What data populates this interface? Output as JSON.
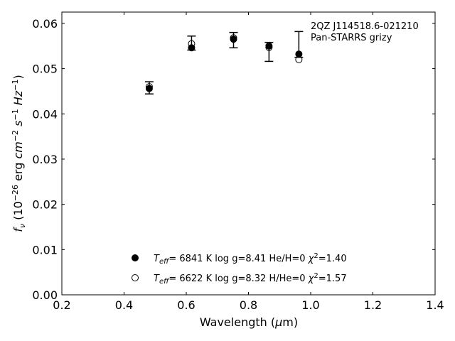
{
  "chart_data": {
    "type": "scatter",
    "title": "",
    "xlabel": "Wavelength (μm)",
    "ylabel": "fν (10⁻²⁶ erg cm⁻² s⁻¹ Hz⁻¹)",
    "xlim": [
      0.2,
      1.4
    ],
    "ylim": [
      0.0,
      0.0625
    ],
    "xticks": [
      "0.2",
      "0.4",
      "0.6",
      "0.8",
      "1.0",
      "1.2",
      "1.4"
    ],
    "yticks": [
      "0.00",
      "0.01",
      "0.02",
      "0.03",
      "0.04",
      "0.05",
      "0.06"
    ],
    "annotation": [
      "2QZ J114518.6-021210",
      "Pan-STARRS grizy"
    ],
    "observed": {
      "x": [
        0.481,
        0.617,
        0.752,
        0.866,
        0.962
      ],
      "y": [
        0.0459,
        0.0556,
        0.0569,
        0.0548,
        0.0539
      ],
      "yerr_low": [
        0.0015,
        0.0015,
        0.0023,
        0.0032,
        0.0014
      ],
      "yerr_high": [
        0.0012,
        0.0016,
        0.0011,
        0.001,
        0.0043
      ]
    },
    "series": [
      {
        "name": "Teff= 6841 K log g=8.41 He/H=0 χ²=1.40",
        "marker": "filled",
        "x": [
          0.481,
          0.617,
          0.752,
          0.866,
          0.962
        ],
        "y": [
          0.0456,
          0.0546,
          0.0565,
          0.055,
          0.0532
        ]
      },
      {
        "name": "Teff= 6622 K log g=8.32 H/He=0 χ²=1.57",
        "marker": "open",
        "x": [
          0.481,
          0.617,
          0.752,
          0.866,
          0.962
        ],
        "y": [
          0.046,
          0.0555,
          0.0568,
          0.0547,
          0.052
        ]
      }
    ],
    "legend": {
      "placement": "bottom-center",
      "entries": [
        {
          "teff_text": "6841 K",
          "logg": "8.41",
          "comp": "He/H=0",
          "chi2": "1.40",
          "marker": "filled"
        },
        {
          "teff_text": "6622 K",
          "logg": "8.32",
          "comp": "H/He=0",
          "chi2": "1.57",
          "marker": "open"
        }
      ]
    },
    "grid": false
  }
}
